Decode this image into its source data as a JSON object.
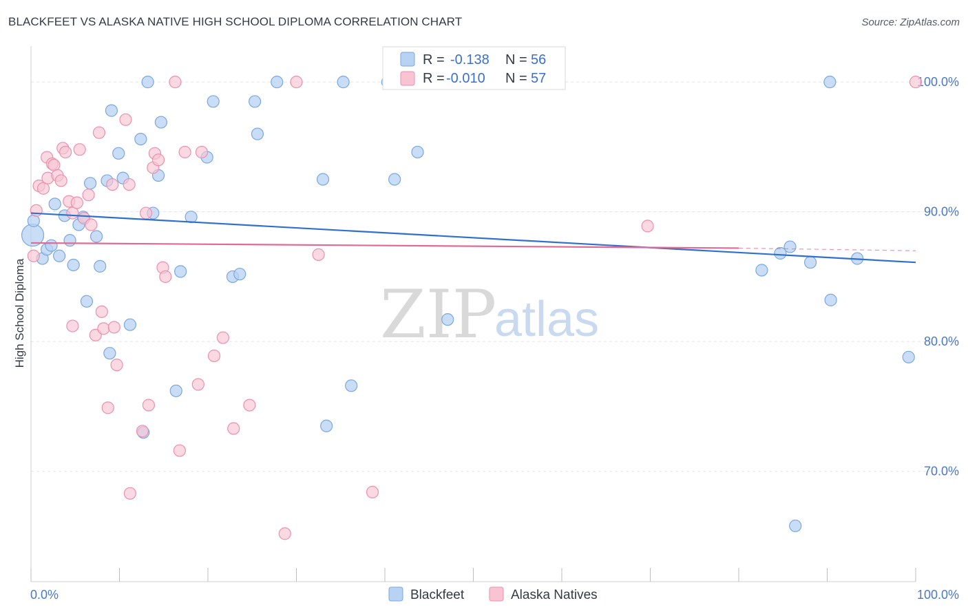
{
  "title": "BLACKFEET VS ALASKA NATIVE HIGH SCHOOL DIPLOMA CORRELATION CHART",
  "source": "Source: ZipAtlas.com",
  "watermark": {
    "zip": "ZIP",
    "atlas": "atlas"
  },
  "colors": {
    "blue_fill": "#b8d2f3",
    "blue_stroke": "#7aa7e0",
    "blue_line": "#2f6fcf",
    "pink_fill": "#f8c4d4",
    "pink_stroke": "#eb90ad",
    "pink_line": "#e06a93",
    "axis_text": "#4a78c6",
    "grid": "#e3e3e3"
  },
  "legend": {
    "rows": [
      {
        "r_label": "R = ",
        "r_value": "-0.138",
        "n_label": "N = ",
        "n_value": "56",
        "series": "blackfeet"
      },
      {
        "r_label": "R = ",
        "r_value": "-0.010",
        "n_label": "N = ",
        "n_value": "57",
        "series": "alaska"
      }
    ]
  },
  "bottom_legend": [
    "Blackfeet",
    "Alaska Natives"
  ],
  "chart_data": {
    "type": "scatter",
    "title": "BLACKFEET VS ALASKA NATIVE HIGH SCHOOL DIPLOMA CORRELATION CHART",
    "xlabel": "",
    "ylabel": "High School Diploma",
    "x_tick_labels": [
      "0.0%",
      "100.0%"
    ],
    "y_tick_labels": [
      "100.0%",
      "90.0%",
      "80.0%",
      "70.0%"
    ],
    "y_ticks": [
      100,
      90,
      80,
      70
    ],
    "xlim": [
      0,
      100
    ],
    "ylim": [
      61.5,
      102.5
    ],
    "grid": true,
    "legend_position": "top-center",
    "series": [
      {
        "name": "Blackfeet",
        "points": [
          [
            0.2,
            88.2
          ],
          [
            0.3,
            89.3
          ],
          [
            1.3,
            86.4
          ],
          [
            1.8,
            87.1
          ],
          [
            2.3,
            87.4
          ],
          [
            2.7,
            90.6
          ],
          [
            3.2,
            86.6
          ],
          [
            3.8,
            89.7
          ],
          [
            4.4,
            87.8
          ],
          [
            4.8,
            85.9
          ],
          [
            5.4,
            89.0
          ],
          [
            5.9,
            89.6
          ],
          [
            6.3,
            83.1
          ],
          [
            6.7,
            92.2
          ],
          [
            7.4,
            88.1
          ],
          [
            7.8,
            85.8
          ],
          [
            8.6,
            92.4
          ],
          [
            8.9,
            79.1
          ],
          [
            9.1,
            97.8
          ],
          [
            9.9,
            94.5
          ],
          [
            10.4,
            92.6
          ],
          [
            11.2,
            81.3
          ],
          [
            12.4,
            95.6
          ],
          [
            12.7,
            73.0
          ],
          [
            13.2,
            100.0
          ],
          [
            13.8,
            89.9
          ],
          [
            14.4,
            92.8
          ],
          [
            14.7,
            96.9
          ],
          [
            16.4,
            76.2
          ],
          [
            16.9,
            85.4
          ],
          [
            18.1,
            89.6
          ],
          [
            19.9,
            94.2
          ],
          [
            20.6,
            98.5
          ],
          [
            22.8,
            85.0
          ],
          [
            23.6,
            85.2
          ],
          [
            25.3,
            98.5
          ],
          [
            25.6,
            96.0
          ],
          [
            27.8,
            100.0
          ],
          [
            33.0,
            92.5
          ],
          [
            33.4,
            73.5
          ],
          [
            35.3,
            100.0
          ],
          [
            36.2,
            76.6
          ],
          [
            40.3,
            100.0
          ],
          [
            41.1,
            92.5
          ],
          [
            43.7,
            94.6
          ],
          [
            47.1,
            81.7
          ],
          [
            48.9,
            100.0
          ],
          [
            86.4,
            65.8
          ],
          [
            82.6,
            85.5
          ],
          [
            84.7,
            86.8
          ],
          [
            85.8,
            87.3
          ],
          [
            88.1,
            86.1
          ],
          [
            90.3,
            100.0
          ],
          [
            90.4,
            83.2
          ],
          [
            93.4,
            86.4
          ],
          [
            99.2,
            78.8
          ]
        ]
      },
      {
        "name": "Alaska Natives",
        "points": [
          [
            0.3,
            86.6
          ],
          [
            0.6,
            90.1
          ],
          [
            0.9,
            92.0
          ],
          [
            1.4,
            91.8
          ],
          [
            1.8,
            94.2
          ],
          [
            1.9,
            92.6
          ],
          [
            2.4,
            93.7
          ],
          [
            2.6,
            93.6
          ],
          [
            3.0,
            92.8
          ],
          [
            3.4,
            92.4
          ],
          [
            3.6,
            94.9
          ],
          [
            3.9,
            94.6
          ],
          [
            4.3,
            90.8
          ],
          [
            4.7,
            89.9
          ],
          [
            5.2,
            90.7
          ],
          [
            5.5,
            94.8
          ],
          [
            4.7,
            81.2
          ],
          [
            6.0,
            89.5
          ],
          [
            6.5,
            91.3
          ],
          [
            6.8,
            89.0
          ],
          [
            7.3,
            80.5
          ],
          [
            7.7,
            96.1
          ],
          [
            8.0,
            82.3
          ],
          [
            8.2,
            81.0
          ],
          [
            8.7,
            74.9
          ],
          [
            9.2,
            92.1
          ],
          [
            9.4,
            81.1
          ],
          [
            9.7,
            78.2
          ],
          [
            10.7,
            97.1
          ],
          [
            11.1,
            92.1
          ],
          [
            11.2,
            68.3
          ],
          [
            12.6,
            73.1
          ],
          [
            13.0,
            89.9
          ],
          [
            13.3,
            75.1
          ],
          [
            13.8,
            93.4
          ],
          [
            14.0,
            94.5
          ],
          [
            14.4,
            94.0
          ],
          [
            14.9,
            85.7
          ],
          [
            15.2,
            85.0
          ],
          [
            16.3,
            100.0
          ],
          [
            16.8,
            71.6
          ],
          [
            17.4,
            94.6
          ],
          [
            18.9,
            76.7
          ],
          [
            19.3,
            94.6
          ],
          [
            20.7,
            78.9
          ],
          [
            21.7,
            80.3
          ],
          [
            22.9,
            73.3
          ],
          [
            24.7,
            75.1
          ],
          [
            28.7,
            65.2
          ],
          [
            30.0,
            100.0
          ],
          [
            32.5,
            86.7
          ],
          [
            38.6,
            68.4
          ],
          [
            45.2,
            100.0
          ],
          [
            47.0,
            100.0
          ],
          [
            48.5,
            100.0
          ],
          [
            69.7,
            88.9
          ],
          [
            100.0,
            100.0
          ]
        ]
      }
    ],
    "trend_lines": [
      {
        "name": "Blackfeet",
        "from": [
          0,
          89.9
        ],
        "to": [
          100,
          86.1
        ]
      },
      {
        "name": "Alaska Natives",
        "from": [
          0,
          87.6
        ],
        "to": [
          80,
          87.2
        ],
        "dashed_to": [
          100,
          87.0
        ]
      }
    ]
  }
}
